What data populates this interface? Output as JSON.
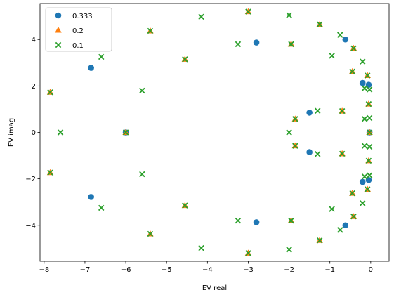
{
  "chart_data": {
    "type": "scatter",
    "xlabel": "EV real",
    "ylabel": "EV imag",
    "xlim": [
      -8.1,
      0.45
    ],
    "ylim": [
      -5.55,
      5.55
    ],
    "x_ticks": [
      -8,
      -7,
      -6,
      -5,
      -4,
      -3,
      -2,
      -1,
      0
    ],
    "y_ticks": [
      -4,
      -2,
      0,
      2,
      4
    ],
    "legend_position": "top-left",
    "grid": false,
    "series": [
      {
        "name": "0.333",
        "marker": "circle",
        "color": "#1f77b4",
        "points": [
          [
            -6.85,
            2.78
          ],
          [
            -6.85,
            -2.78
          ],
          [
            -2.8,
            3.87
          ],
          [
            -2.8,
            -3.87
          ],
          [
            -1.5,
            0.85
          ],
          [
            -1.5,
            -0.85
          ],
          [
            -0.62,
            4.0
          ],
          [
            -0.62,
            -4.0
          ],
          [
            -0.2,
            2.13
          ],
          [
            -0.2,
            -2.13
          ],
          [
            -0.05,
            2.05
          ],
          [
            -0.05,
            -2.05
          ],
          [
            -0.03,
            0.0
          ],
          [
            -6.0,
            0.0
          ]
        ]
      },
      {
        "name": "0.2",
        "marker": "triangle",
        "color": "#ff7f0e",
        "points": [
          [
            -7.85,
            1.73
          ],
          [
            -7.85,
            -1.73
          ],
          [
            -6.0,
            0.0
          ],
          [
            -5.4,
            4.37
          ],
          [
            -5.4,
            -4.37
          ],
          [
            -4.55,
            3.15
          ],
          [
            -4.55,
            -3.15
          ],
          [
            -3.0,
            5.2
          ],
          [
            -3.0,
            -5.2
          ],
          [
            -1.95,
            3.8
          ],
          [
            -1.95,
            -3.8
          ],
          [
            -1.85,
            0.58
          ],
          [
            -1.85,
            -0.58
          ],
          [
            -1.25,
            4.65
          ],
          [
            -1.25,
            -4.65
          ],
          [
            -0.7,
            0.92
          ],
          [
            -0.7,
            -0.92
          ],
          [
            -0.42,
            3.62
          ],
          [
            -0.42,
            -3.62
          ],
          [
            -0.45,
            2.62
          ],
          [
            -0.45,
            -2.62
          ],
          [
            -0.08,
            2.45
          ],
          [
            -0.08,
            -2.45
          ],
          [
            -0.05,
            1.22
          ],
          [
            -0.05,
            -1.22
          ],
          [
            -0.03,
            0.0
          ]
        ]
      },
      {
        "name": "0.1",
        "marker": "x",
        "color": "#2ca02c",
        "points": [
          [
            -7.6,
            0.0
          ],
          [
            -7.85,
            1.73
          ],
          [
            -7.85,
            -1.73
          ],
          [
            -6.6,
            3.25
          ],
          [
            -6.6,
            -3.25
          ],
          [
            -6.0,
            0.0
          ],
          [
            -5.6,
            1.8
          ],
          [
            -5.6,
            -1.8
          ],
          [
            -5.4,
            4.37
          ],
          [
            -5.4,
            -4.37
          ],
          [
            -4.55,
            3.15
          ],
          [
            -4.55,
            -3.15
          ],
          [
            -4.15,
            4.98
          ],
          [
            -4.15,
            -4.98
          ],
          [
            -3.25,
            3.8
          ],
          [
            -3.25,
            -3.8
          ],
          [
            -3.0,
            5.2
          ],
          [
            -3.0,
            -5.2
          ],
          [
            -2.0,
            5.05
          ],
          [
            -2.0,
            -5.05
          ],
          [
            -1.95,
            3.8
          ],
          [
            -1.95,
            -3.8
          ],
          [
            -2.0,
            0.0
          ],
          [
            -1.85,
            0.58
          ],
          [
            -1.85,
            -0.58
          ],
          [
            -1.3,
            0.93
          ],
          [
            -1.3,
            -0.93
          ],
          [
            -1.25,
            4.65
          ],
          [
            -1.25,
            -4.65
          ],
          [
            -0.95,
            3.3
          ],
          [
            -0.95,
            -3.3
          ],
          [
            -0.75,
            4.2
          ],
          [
            -0.75,
            -4.2
          ],
          [
            -0.7,
            0.92
          ],
          [
            -0.7,
            -0.92
          ],
          [
            -0.42,
            3.62
          ],
          [
            -0.42,
            -3.62
          ],
          [
            -0.45,
            2.62
          ],
          [
            -0.45,
            -2.62
          ],
          [
            -0.2,
            3.05
          ],
          [
            -0.2,
            -3.05
          ],
          [
            -0.15,
            1.9
          ],
          [
            -0.15,
            -1.9
          ],
          [
            -0.15,
            0.58
          ],
          [
            -0.15,
            -0.58
          ],
          [
            -0.08,
            2.45
          ],
          [
            -0.08,
            -2.45
          ],
          [
            -0.03,
            1.85
          ],
          [
            -0.03,
            -1.85
          ],
          [
            -0.05,
            1.22
          ],
          [
            -0.05,
            -1.22
          ],
          [
            -0.03,
            0.62
          ],
          [
            -0.03,
            -0.62
          ],
          [
            -0.03,
            0.0
          ]
        ]
      }
    ]
  }
}
